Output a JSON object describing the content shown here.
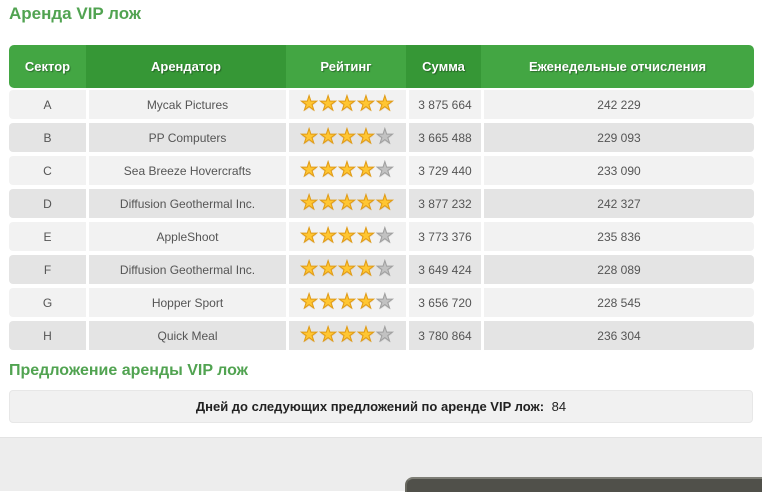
{
  "page": {
    "title": "Аренда VIP лож"
  },
  "rental_table": {
    "columns": [
      "Сектор",
      "Арендатор",
      "Рейтинг",
      "Сумма",
      "Еженедельные отчисления"
    ],
    "rating_max": 5,
    "rows": [
      {
        "sector": "A",
        "tenant": "Mycak Pictures",
        "rating": 5,
        "sum": "3 875 664",
        "weekly": "242 229"
      },
      {
        "sector": "B",
        "tenant": "PP Computers",
        "rating": 4,
        "sum": "3 665 488",
        "weekly": "229 093"
      },
      {
        "sector": "C",
        "tenant": "Sea Breeze Hovercrafts",
        "rating": 4,
        "sum": "3 729 440",
        "weekly": "233 090"
      },
      {
        "sector": "D",
        "tenant": "Diffusion Geothermal Inc.",
        "rating": 5,
        "sum": "3 877 232",
        "weekly": "242 327"
      },
      {
        "sector": "E",
        "tenant": "AppleShoot",
        "rating": 4,
        "sum": "3 773 376",
        "weekly": "235 836"
      },
      {
        "sector": "F",
        "tenant": "Diffusion Geothermal Inc.",
        "rating": 4,
        "sum": "3 649 424",
        "weekly": "228 089"
      },
      {
        "sector": "G",
        "tenant": "Hopper Sport",
        "rating": 4,
        "sum": "3 656 720",
        "weekly": "228 545"
      },
      {
        "sector": "H",
        "tenant": "Quick Meal",
        "rating": 4,
        "sum": "3 780 864",
        "weekly": "236 304"
      }
    ]
  },
  "offer_section": {
    "title": "Предложение аренды VIP лож",
    "days_label": "Дней до следующих предложений по аренде VIP лож:",
    "days_value": "84"
  },
  "icons": {
    "star": "★"
  },
  "colors": {
    "accent_green": "#51a351",
    "header_green_light": "#43a643",
    "header_green_dark": "#369736",
    "row_light": "#f2f2f2",
    "row_dark": "#e4e4e4",
    "star_filled": "#ffc632",
    "star_empty": "#c2c2c2",
    "footer_bar": "#50504a"
  }
}
